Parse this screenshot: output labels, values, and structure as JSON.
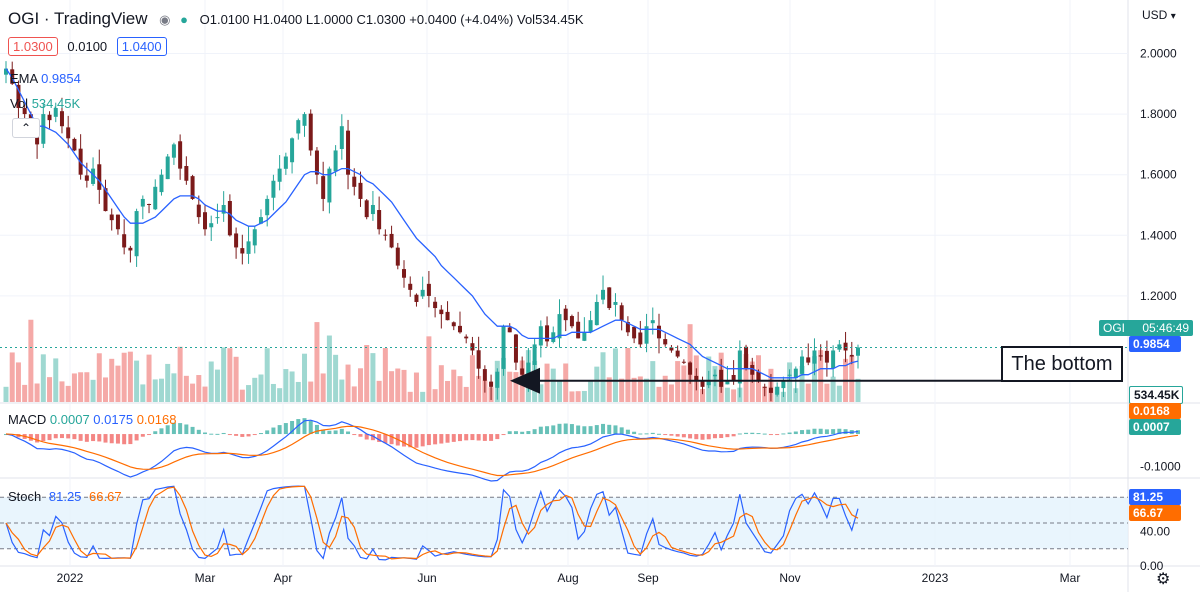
{
  "header": {
    "title": "OGI · TradingView",
    "ohlc": {
      "o": "O1.0100",
      "h": "H1.0400",
      "l": "L1.0000",
      "c": "C1.0300",
      "chg": "+0.0400 (+4.04%)",
      "vol": "Vol534.45K"
    },
    "bid": "1.0300",
    "spread": "0.0100",
    "ask": "1.0400",
    "ema_label": "EMA",
    "ema_value": "0.9854",
    "vol_label": "Vol",
    "vol_value": "534.45K",
    "currency": "USD"
  },
  "colors": {
    "up": "#26a69a",
    "down": "#ef5350",
    "bar": "#7b1a1a",
    "ema": "#2962ff",
    "signal": "#ff6d00",
    "stoch_band": "#2196f3"
  },
  "icons": [
    "eye-icon",
    "dot-icon",
    "collapse-icon",
    "settings-icon",
    "chevron-down-icon"
  ],
  "price_axis": {
    "ticks": [
      "2.0000",
      "1.8000",
      "1.6000",
      "1.4000",
      "1.2000"
    ]
  },
  "macd_axis": {
    "ticks": [
      "-0.1000"
    ]
  },
  "stoch_axis": {
    "ticks": [
      "40.00",
      "0.00"
    ]
  },
  "x_axis": {
    "ticks": [
      "2022",
      "Mar",
      "Apr",
      "Jun",
      "Aug",
      "Sep",
      "Nov",
      "2023",
      "Mar"
    ]
  },
  "tags": {
    "symbol": "OGI",
    "countdown": "05:46:49",
    "ema": "0.9854",
    "volume": "534.45K",
    "macd_signal": "0.0168",
    "macd_hist": "0.0007",
    "stoch_k": "81.25",
    "stoch_d": "66.67"
  },
  "macd_legend": {
    "label": "MACD",
    "v1": "0.0007",
    "v2": "0.0175",
    "v3": "0.0168"
  },
  "stoch_legend": {
    "label": "Stoch",
    "k": "81.25",
    "d": "66.67"
  },
  "annotation": {
    "text": "The bottom"
  },
  "chart_data": {
    "type": "candlestick",
    "symbol": "OGI",
    "price_range": [
      0.85,
      2.15
    ],
    "closes": [
      1.95,
      1.9,
      1.82,
      1.8,
      1.75,
      1.7,
      1.8,
      1.78,
      1.82,
      1.76,
      1.72,
      1.68,
      1.6,
      1.58,
      1.62,
      1.55,
      1.48,
      1.45,
      1.42,
      1.36,
      1.35,
      1.48,
      1.52,
      1.5,
      1.56,
      1.6,
      1.66,
      1.7,
      1.62,
      1.58,
      1.52,
      1.46,
      1.42,
      1.44,
      1.46,
      1.5,
      1.4,
      1.36,
      1.34,
      1.38,
      1.42,
      1.46,
      1.52,
      1.58,
      1.62,
      1.66,
      1.72,
      1.78,
      1.8,
      1.68,
      1.6,
      1.52,
      1.62,
      1.68,
      1.76,
      1.6,
      1.56,
      1.52,
      1.46,
      1.5,
      1.42,
      1.4,
      1.36,
      1.3,
      1.26,
      1.22,
      1.18,
      1.22,
      1.2,
      1.16,
      1.14,
      1.12,
      1.1,
      1.08,
      1.06,
      1.02,
      0.96,
      0.92,
      0.9,
      0.95,
      1.1,
      1.08,
      0.98,
      0.94,
      0.98,
      1.04,
      1.1,
      1.05,
      1.08,
      1.14,
      1.12,
      1.1,
      1.06,
      1.08,
      1.12,
      1.18,
      1.22,
      1.16,
      1.18,
      1.12,
      1.08,
      1.06,
      1.04,
      1.1,
      1.12,
      1.06,
      1.04,
      1.02,
      1.0,
      0.98,
      0.94,
      0.92,
      0.9,
      0.92,
      0.94,
      0.9,
      0.92,
      0.92,
      1.02,
      0.96,
      0.94,
      0.92,
      0.9,
      0.88,
      0.9,
      0.92,
      0.94,
      0.96,
      1.0,
      0.98,
      1.02,
      1.0,
      0.98,
      1.02,
      1.04,
      1.02,
      1.0,
      1.03
    ],
    "ema": [
      1.95,
      1.92,
      1.88,
      1.84,
      1.8,
      1.76,
      1.76,
      1.75,
      1.74,
      1.72,
      1.7,
      1.67,
      1.64,
      1.62,
      1.6,
      1.58,
      1.55,
      1.52,
      1.49,
      1.46,
      1.44,
      1.44,
      1.44,
      1.45,
      1.46,
      1.48,
      1.5,
      1.52,
      1.53,
      1.53,
      1.53,
      1.52,
      1.5,
      1.49,
      1.48,
      1.48,
      1.47,
      1.45,
      1.44,
      1.43,
      1.43,
      1.44,
      1.45,
      1.47,
      1.49,
      1.51,
      1.54,
      1.57,
      1.6,
      1.61,
      1.61,
      1.6,
      1.6,
      1.61,
      1.62,
      1.62,
      1.61,
      1.6,
      1.58,
      1.57,
      1.55,
      1.53,
      1.51,
      1.48,
      1.45,
      1.42,
      1.39,
      1.37,
      1.35,
      1.33,
      1.3,
      1.28,
      1.26,
      1.24,
      1.22,
      1.2,
      1.17,
      1.14,
      1.12,
      1.1,
      1.1,
      1.1,
      1.09,
      1.07,
      1.06,
      1.06,
      1.06,
      1.06,
      1.06,
      1.07,
      1.07,
      1.08,
      1.08,
      1.08,
      1.08,
      1.09,
      1.1,
      1.11,
      1.12,
      1.12,
      1.11,
      1.1,
      1.09,
      1.09,
      1.09,
      1.09,
      1.08,
      1.07,
      1.06,
      1.05,
      1.04,
      1.02,
      1.0,
      0.99,
      0.98,
      0.97,
      0.96,
      0.96,
      0.96,
      0.96,
      0.96,
      0.95,
      0.94,
      0.93,
      0.93,
      0.93,
      0.93,
      0.93,
      0.94,
      0.94,
      0.95,
      0.96,
      0.96,
      0.96,
      0.97,
      0.97,
      0.98,
      0.985
    ],
    "macd_range": [
      -0.13,
      0.09
    ],
    "stoch_range": [
      0,
      100
    ],
    "stoch_band": [
      20,
      80
    ],
    "bottom_level": 0.92
  }
}
